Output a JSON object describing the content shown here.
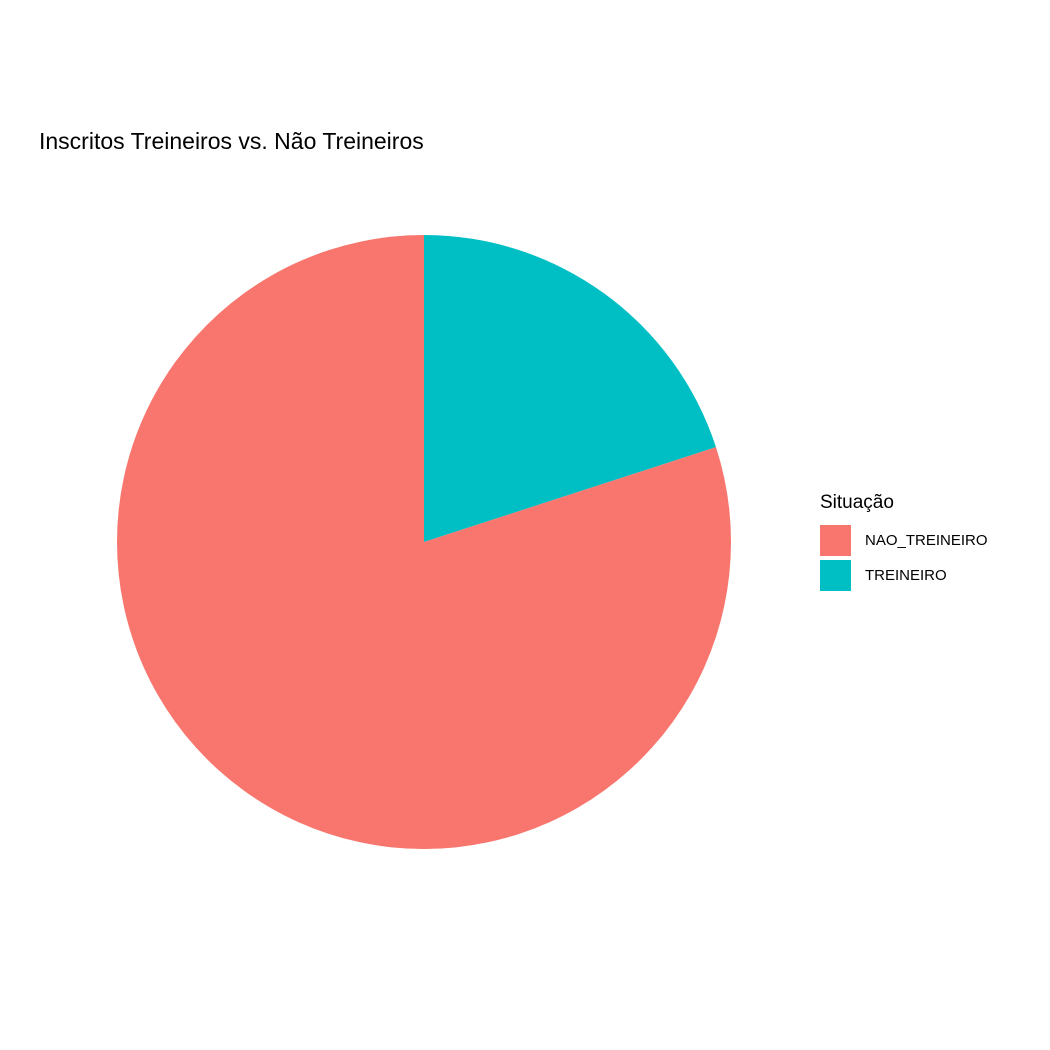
{
  "chart_data": {
    "type": "pie",
    "title": "Inscritos Treineiros vs. Não Treineiros",
    "legend": {
      "title": "Situação",
      "placement": "right"
    },
    "categories": [
      "NAO_TREINEIRO",
      "TREINEIRO"
    ],
    "values": [
      0.8,
      0.2
    ],
    "colors": [
      "#F8766D",
      "#00BFC4"
    ],
    "grid": false
  }
}
